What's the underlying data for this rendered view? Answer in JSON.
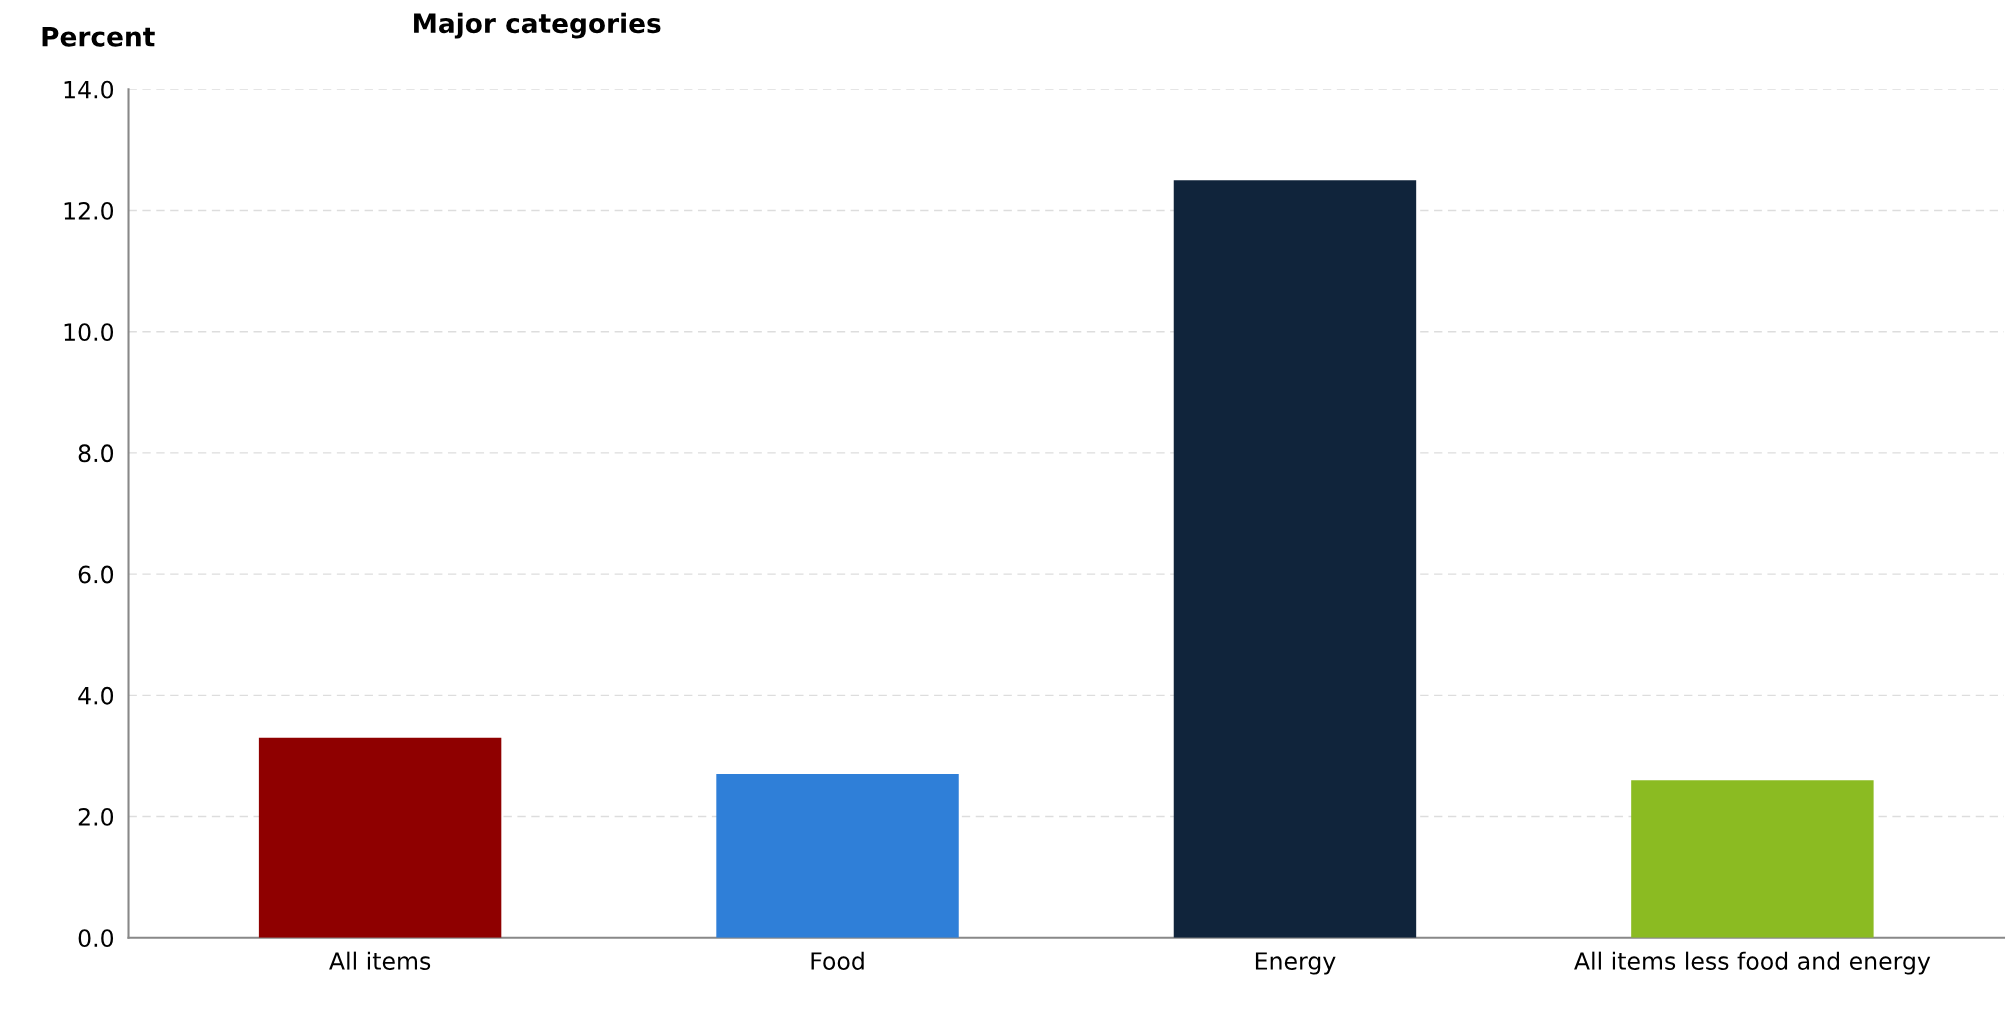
{
  "chart_data": {
    "type": "bar",
    "title": "Major categories",
    "ylabel": "Percent",
    "categories": [
      "All items",
      "Food",
      "Energy",
      "All items less food and energy"
    ],
    "values": [
      3.3,
      2.7,
      12.5,
      2.6
    ],
    "colors": [
      "#8f0000",
      "#2f7fd8",
      "#10243b",
      "#8bbb22"
    ],
    "ylim": [
      0,
      14
    ],
    "yticks": [
      {
        "value": 0,
        "label": "0.0"
      },
      {
        "value": 2,
        "label": "2.0"
      },
      {
        "value": 4,
        "label": "4.0"
      },
      {
        "value": 6,
        "label": "6.0"
      },
      {
        "value": 8,
        "label": "8.0"
      },
      {
        "value": 10,
        "label": "10.0"
      },
      {
        "value": 12,
        "label": "12.0"
      },
      {
        "value": 14,
        "label": "14.0"
      }
    ],
    "grid": "y",
    "legend": false
  }
}
